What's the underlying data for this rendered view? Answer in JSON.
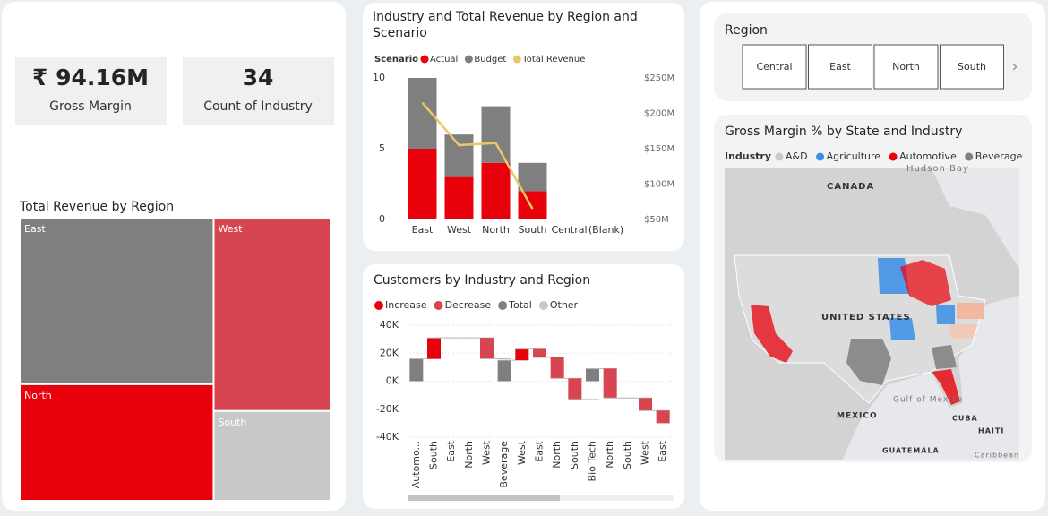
{
  "cards": [
    {
      "value": "₹ 94.16M",
      "label": "Gross Margin"
    },
    {
      "value": "34",
      "label": "Count of Industry"
    }
  ],
  "slicer": {
    "title": "Region",
    "items": [
      "Central",
      "East",
      "North",
      "South"
    ]
  },
  "map": {
    "title": "Gross Margin % by State and Industry",
    "legend_title": "Industry",
    "legend": [
      {
        "name": "A&D",
        "color": "#c8c8c8"
      },
      {
        "name": "Agriculture",
        "color": "#3a8ee6"
      },
      {
        "name": "Automotive",
        "color": "#e8000b"
      },
      {
        "name": "Beverage",
        "color": "#7f7f7f"
      }
    ],
    "labels": [
      "CANADA",
      "Hudson Bay",
      "UNITED STATES",
      "Gulf of Mexico",
      "MEXICO",
      "CUBA",
      "HAITI",
      "GUATEMALA",
      "Caribbean"
    ]
  },
  "chart_data": [
    {
      "type": "treemap",
      "title": "Total Revenue by Region",
      "categories": [
        "East",
        "North",
        "West",
        "South"
      ],
      "values": [
        40,
        28,
        28,
        13
      ],
      "colors": [
        "#7f7f7f",
        "#e8000b",
        "#d64550",
        "#c8c8c8"
      ]
    },
    {
      "type": "bar-line",
      "title": "Industry and Total Revenue by Region and Scenario",
      "legend_title": "Scenario",
      "categories": [
        "East",
        "West",
        "North",
        "South",
        "Central",
        "(Blank)"
      ],
      "series": [
        {
          "name": "Actual",
          "color": "#e8000b",
          "values": [
            5,
            3,
            4,
            2,
            null,
            null
          ]
        },
        {
          "name": "Budget",
          "color": "#7f7f7f",
          "values": [
            5,
            3,
            4,
            2,
            null,
            null
          ]
        },
        {
          "name": "Total Revenue",
          "color": "#e8c86a",
          "axis": "y2",
          "values": [
            215,
            155,
            158,
            65,
            null,
            null
          ]
        }
      ],
      "ylim": [
        0,
        10
      ],
      "yticks": [
        0,
        5,
        10
      ],
      "y2lim": [
        50,
        250
      ],
      "y2ticks": [
        {
          "value": 50,
          "label": "$50M"
        },
        {
          "value": 100,
          "label": "$100M"
        },
        {
          "value": 150,
          "label": "$150M"
        },
        {
          "value": 200,
          "label": "$200M"
        },
        {
          "value": 250,
          "label": "$250M"
        }
      ]
    },
    {
      "type": "waterfall",
      "title": "Customers by Industry and Region",
      "legend": [
        {
          "name": "Increase",
          "color": "#e8000b"
        },
        {
          "name": "Decrease",
          "color": "#d64550"
        },
        {
          "name": "Total",
          "color": "#7f7f7f"
        },
        {
          "name": "Other",
          "color": "#c8c8c8"
        }
      ],
      "categories": [
        "Automo...",
        "South",
        "East",
        "North",
        "West",
        "Beverage",
        "West",
        "East",
        "North",
        "South",
        "Bio Tech",
        "North",
        "South",
        "West",
        "East"
      ],
      "values": [
        16000,
        15000,
        0,
        0,
        -15000,
        15000,
        8000,
        -6000,
        -15000,
        -15000,
        9000,
        -21000,
        0,
        -9000,
        -9000
      ],
      "kinds": [
        "Total",
        "Increase",
        "Decrease",
        "Decrease",
        "Decrease",
        "Total",
        "Increase",
        "Decrease",
        "Decrease",
        "Decrease",
        "Total",
        "Decrease",
        "Decrease",
        "Decrease",
        "Decrease"
      ],
      "ylim": [
        -40000,
        40000
      ],
      "yticks": [
        {
          "value": -40000,
          "label": "-40K"
        },
        {
          "value": -20000,
          "label": "-20K"
        },
        {
          "value": 0,
          "label": "0K"
        },
        {
          "value": 20000,
          "label": "20K"
        },
        {
          "value": 40000,
          "label": "40K"
        }
      ],
      "grid": true
    }
  ]
}
